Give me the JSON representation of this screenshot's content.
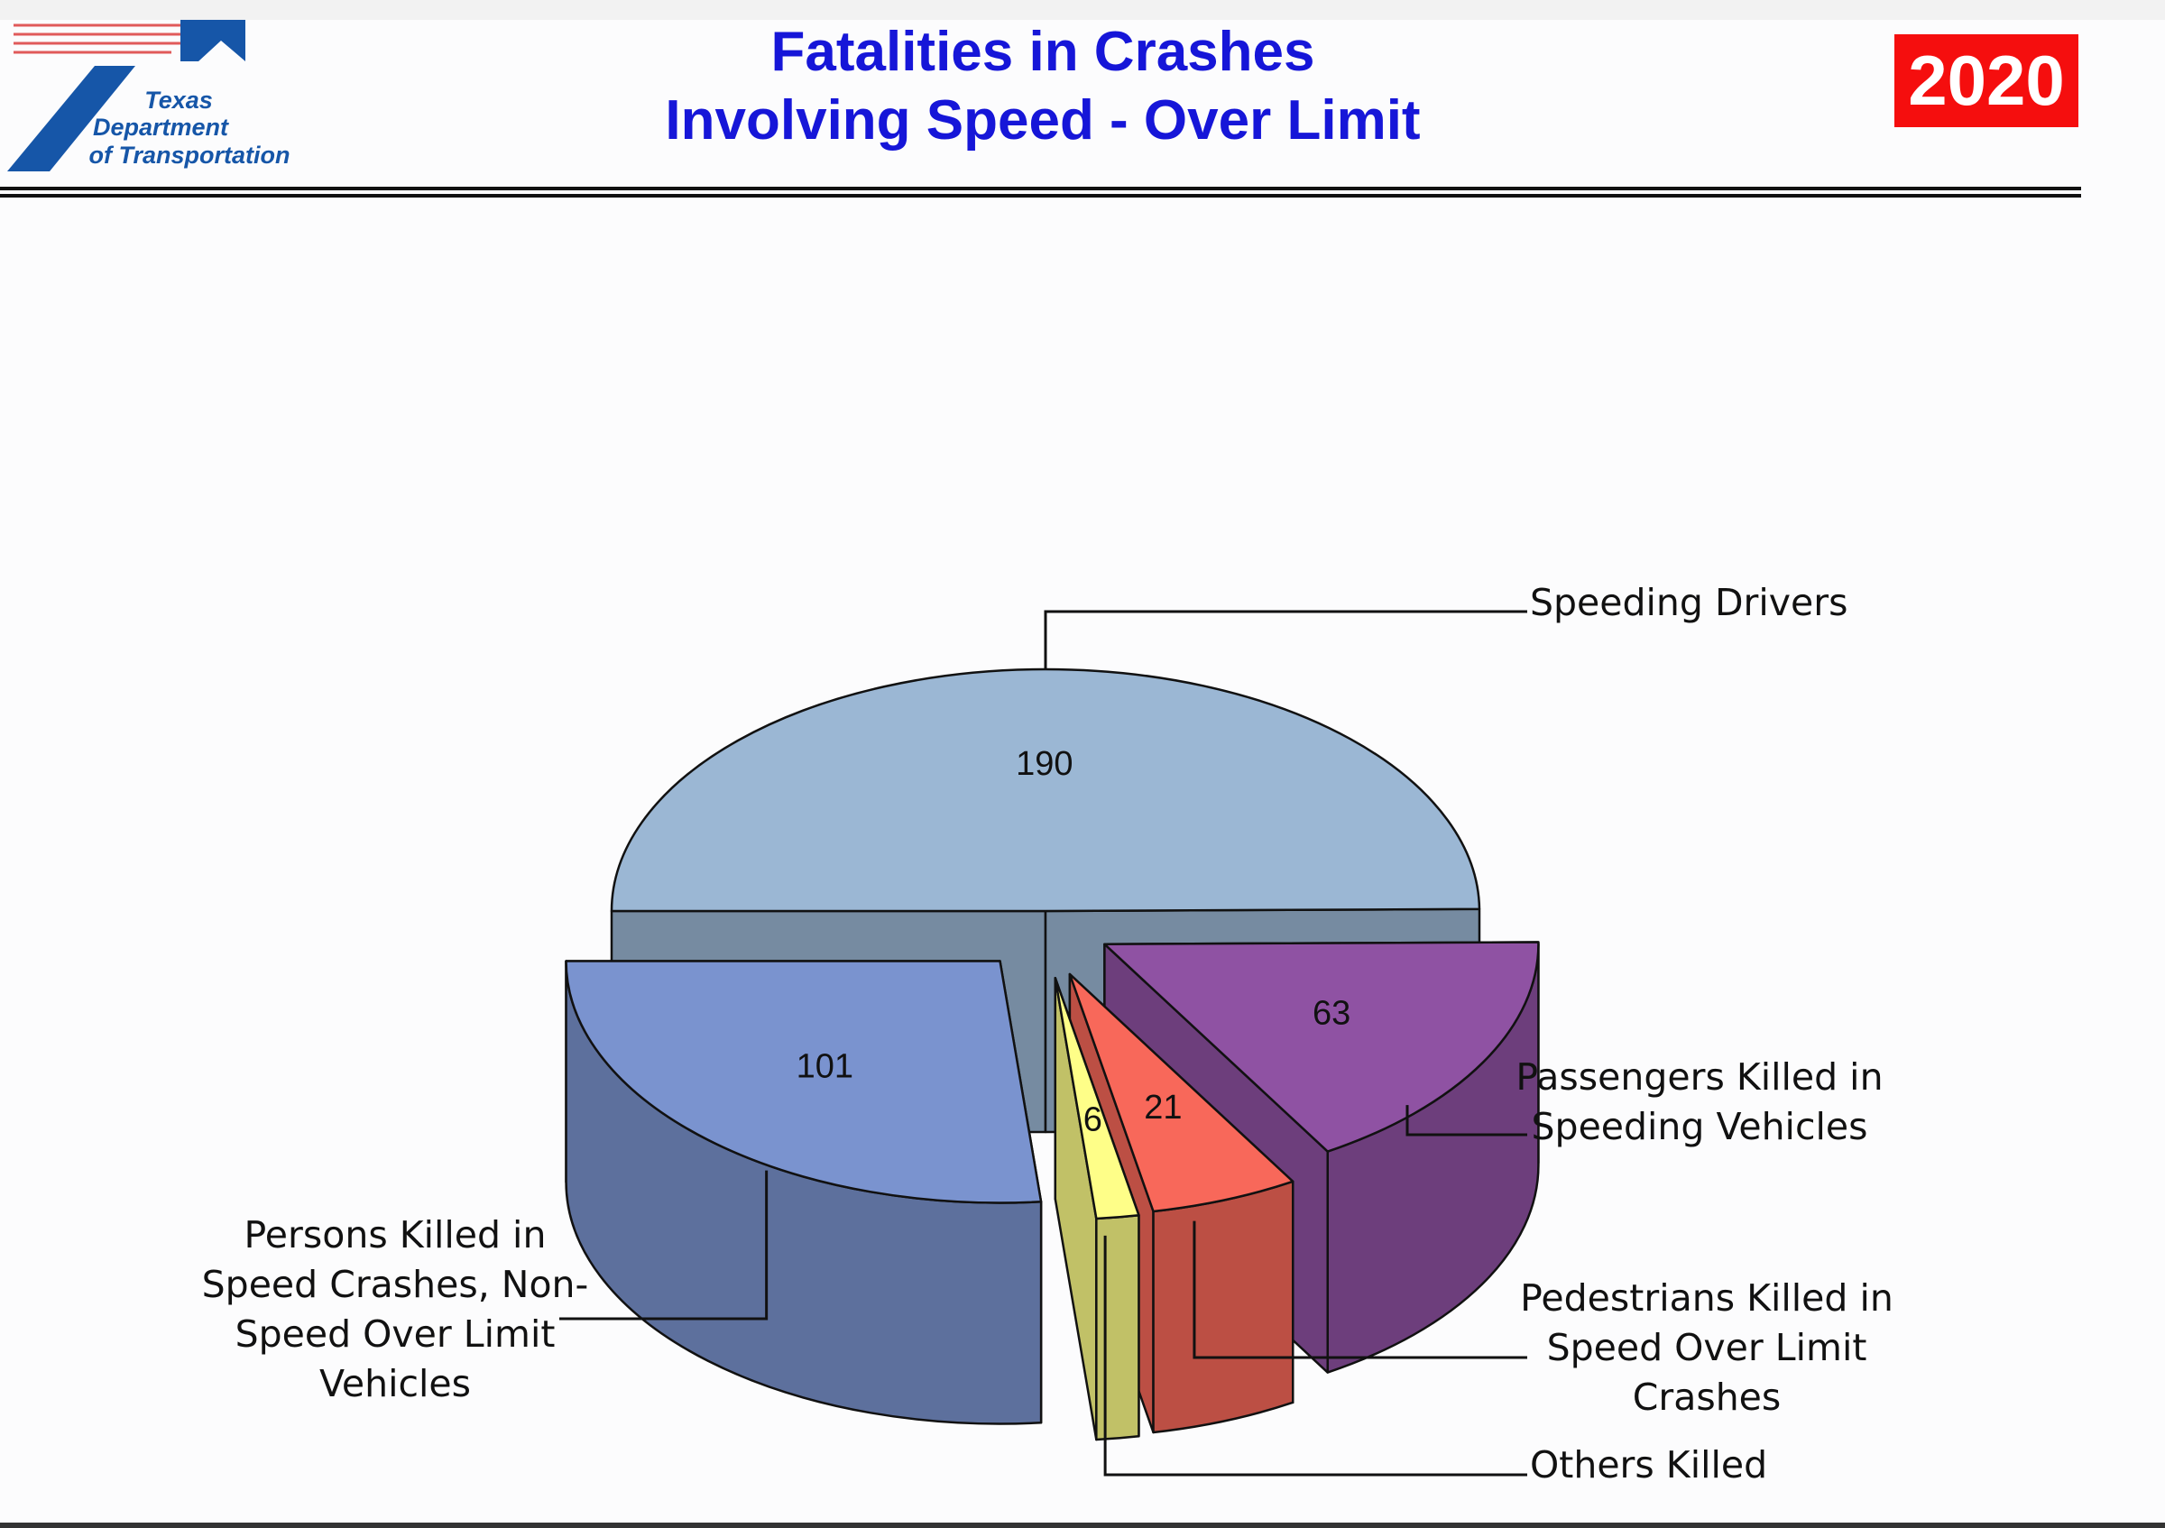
{
  "logo": [
    "Texas",
    "Department",
    "of Transportation"
  ],
  "chart_data": {
    "type": "pie",
    "title": [
      "Fatalities in Crashes",
      "Involving Speed - Over Limit"
    ],
    "subtitle": "2020",
    "categories": [
      "Speeding Drivers",
      "Passengers Killed in Speeding Vehicles",
      "Pedestrians Killed in Speed Over Limit Crashes",
      "Others Killed",
      "Persons Killed in Speed Crashes, Non-Speed Over Limit Vehicles"
    ],
    "values": [
      190,
      63,
      21,
      6,
      101
    ],
    "colors": [
      "#9bb7d4",
      "#8f52a3",
      "#f8685a",
      "#fefe88",
      "#7a93cf"
    ]
  }
}
